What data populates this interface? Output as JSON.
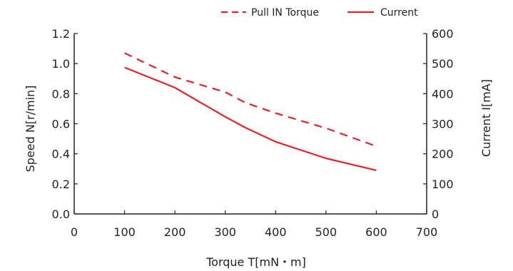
{
  "chart_data": {
    "type": "line",
    "xlabel": "Torque T[mN・m]",
    "ylabel_left": "Speed N[r/min]",
    "ylabel_right": "Current I[mA]",
    "xlim": [
      0,
      700
    ],
    "ylim_left": [
      0.0,
      1.2
    ],
    "ylim_right": [
      0,
      600
    ],
    "x_ticks": [
      "0",
      "100",
      "200",
      "300",
      "400",
      "500",
      "600",
      "700"
    ],
    "y_left_ticks": [
      "0.0",
      "0.2",
      "0.4",
      "0.6",
      "0.8",
      "1.0",
      "1.2"
    ],
    "y_right_ticks": [
      "0",
      "100",
      "200",
      "300",
      "400",
      "500",
      "600"
    ],
    "grid": false,
    "legend_position": "top-right",
    "series": [
      {
        "name": "Pull IN Torque",
        "axis": "left",
        "style": "dashed",
        "color": "#e8202a",
        "x": [
          100,
          200,
          300,
          340,
          400,
          500,
          600
        ],
        "y": [
          1.07,
          0.91,
          0.81,
          0.74,
          0.67,
          0.57,
          0.45
        ]
      },
      {
        "name": "Current",
        "axis": "right",
        "style": "solid",
        "color": "#e8202a",
        "x": [
          100,
          200,
          300,
          340,
          400,
          500,
          600
        ],
        "y": [
          487,
          420,
          323,
          287,
          240,
          185,
          145
        ]
      }
    ]
  }
}
